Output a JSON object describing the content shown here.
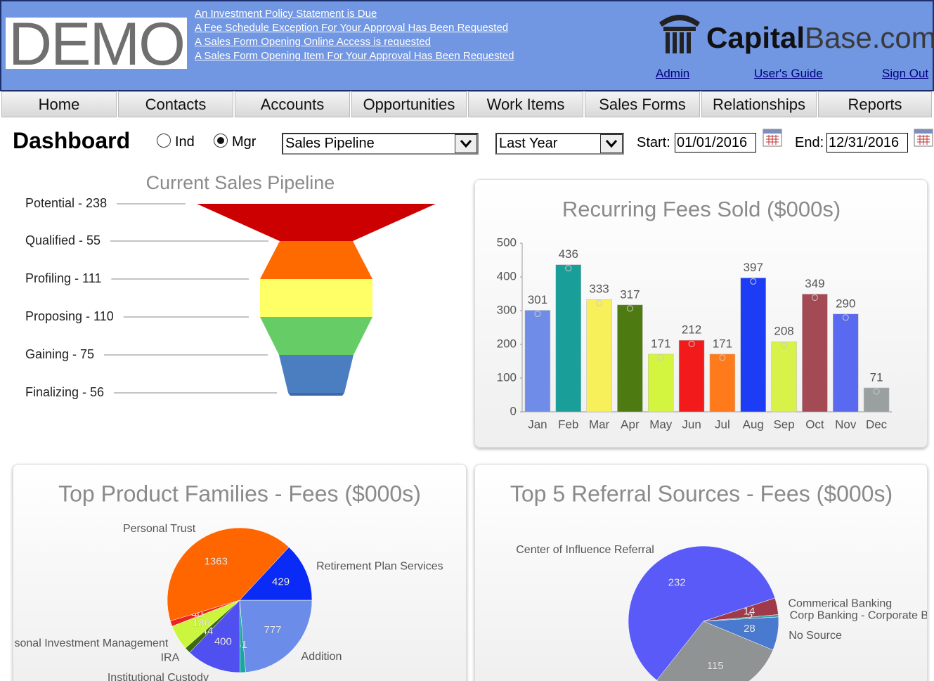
{
  "header": {
    "logo": "DEMO",
    "alerts": [
      "An Investment Policy Statement is Due",
      "A Fee Schedule Exception For Your Approval Has Been Requested",
      "A Sales Form Opening Online Access is requested",
      "A Sales Form Opening Item For Your Approval Has Been Requested"
    ],
    "brand": {
      "name1": "Capital",
      "name2": "Base.com"
    },
    "links": [
      "Admin",
      "User's Guide",
      "Sign Out"
    ]
  },
  "nav": [
    "Home",
    "Contacts",
    "Accounts",
    "Opportunities",
    "Work Items",
    "Sales Forms",
    "Relationships",
    "Reports"
  ],
  "toolbar": {
    "title": "Dashboard",
    "radios": [
      "Ind",
      "Mgr"
    ],
    "checked": "Mgr",
    "report_select": "Sales Pipeline",
    "period_select": "Last Year",
    "start_label": "Start:",
    "start": "01/01/2016",
    "end_label": "End:",
    "end": "12/31/2016"
  },
  "chart_data": [
    {
      "type": "funnel",
      "title": "Current Sales Pipeline",
      "categories": [
        "Potential - 238",
        "Qualified - 55",
        "Profiling - 111",
        "Proposing - 110",
        "Gaining - 75",
        "Finalizing - 56"
      ],
      "values": [
        238,
        55,
        111,
        110,
        75,
        56
      ],
      "colors": [
        "#cc0000",
        "#ff6a00",
        "#ffff66",
        "#66cc66",
        "#4a7ec0",
        "#3a6aa8"
      ]
    },
    {
      "type": "bar",
      "title": "Recurring Fees Sold ($000s)",
      "categories": [
        "Jan",
        "Feb",
        "Mar",
        "Apr",
        "May",
        "Jun",
        "Jul",
        "Aug",
        "Sep",
        "Oct",
        "Nov",
        "Dec"
      ],
      "values": [
        301,
        436,
        333,
        317,
        171,
        212,
        171,
        397,
        208,
        349,
        290,
        71
      ],
      "colors": [
        "#6f8de8",
        "#1a9e9a",
        "#f7f05a",
        "#4e7a12",
        "#d4f540",
        "#f21a1a",
        "#ff7a1a",
        "#1d3cf5",
        "#d8f24a",
        "#a34a55",
        "#5a6af0",
        "#9aa0a0"
      ],
      "ylim": [
        0,
        500
      ],
      "yticks": [
        0,
        100,
        200,
        300,
        400,
        500
      ]
    },
    {
      "type": "pie",
      "title": "Top Product Families - Fees ($000s)",
      "categories": [
        "Addition",
        null,
        "Institutional Custody",
        "IRA",
        "sonal Investment Management",
        null,
        "Personal Trust",
        "Retirement Plan Services"
      ],
      "values": [
        777,
        41,
        400,
        44,
        186,
        40,
        1363,
        429
      ],
      "colors": [
        "#6b8ce8",
        "#1aa5a0",
        "#5050f0",
        "#3d6b10",
        "#ccf53d",
        "#ee2222",
        "#ff6600",
        "#0a2af5"
      ]
    },
    {
      "type": "pie",
      "title": "Top 5 Referral Sources - Fees ($000s)",
      "categories": [
        "Commerical Banking",
        "Corp Banking - Corporate Ba",
        "No Source",
        null,
        "Center of Influence Referral"
      ],
      "values": [
        14,
        2,
        28,
        115,
        232
      ],
      "colors": [
        "#a03a4a",
        "#3aa0a0",
        "#4a7ad0",
        "#8f9393",
        "#5a5af8"
      ]
    }
  ]
}
